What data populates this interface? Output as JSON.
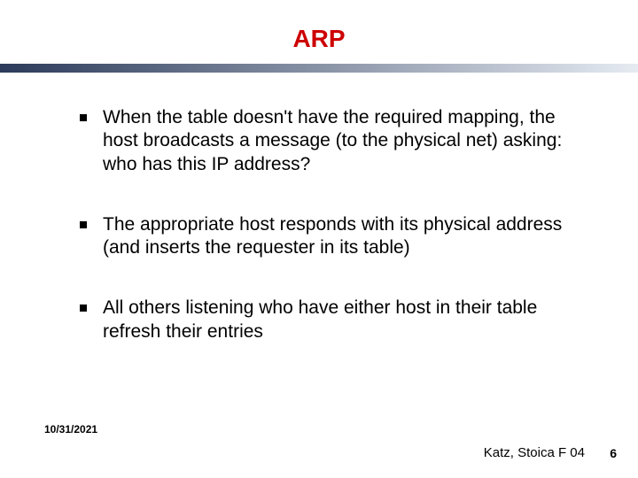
{
  "slide": {
    "title": "ARP",
    "title_color": "#cc0000",
    "title_fontsize": 28,
    "divider_gradient_from": "#2b3a5a",
    "divider_gradient_to": "#e6ebf2",
    "bullets": [
      "When the table doesn't have the required mapping, the host broadcasts a message (to the physical net) asking: who has this IP address?",
      "The appropriate host responds with its physical address (and inserts the requester in its table)",
      "All others listening who have either host in their table refresh their entries"
    ],
    "bullet_fontsize": 21,
    "bullet_color": "#000000",
    "footer": {
      "date": "10/31/2021",
      "date_fontsize": 12,
      "credit": "Katz, Stoica F 04",
      "credit_fontsize": 15,
      "page": "6",
      "page_fontsize": 14
    },
    "background_color": "#ffffff"
  }
}
